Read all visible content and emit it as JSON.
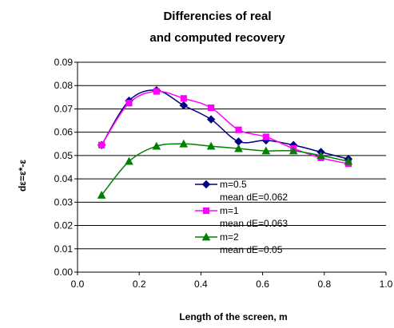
{
  "chart_data": {
    "type": "line",
    "title_lines": [
      "Differencies of real",
      "and computed recovery"
    ],
    "xlabel": "Length of the screen, m",
    "ylabel": "dε=ε*-ε",
    "xlim": [
      0,
      1.0
    ],
    "ylim": [
      0,
      0.09
    ],
    "x_ticks": [
      "0.0",
      "0.2",
      "0.4",
      "0.6",
      "0.8",
      "1.0"
    ],
    "y_ticks": [
      "0.00",
      "0.01",
      "0.02",
      "0.03",
      "0.04",
      "0.05",
      "0.06",
      "0.07",
      "0.08",
      "0.09"
    ],
    "grid": "horizontal",
    "legend_position": "center",
    "series": [
      {
        "name": "m=0.5",
        "stat": "mean dE=0.062",
        "color": "#000080",
        "marker": "diamond",
        "x": [
          0.078,
          0.167,
          0.256,
          0.344,
          0.433,
          0.522,
          0.611,
          0.7,
          0.789,
          0.878
        ],
        "values": [
          0.0545,
          0.0735,
          0.078,
          0.0715,
          0.0655,
          0.056,
          0.0565,
          0.0545,
          0.0515,
          0.0485
        ]
      },
      {
        "name": "m=1",
        "stat": "mean dE=0.063",
        "color": "#ff00ff",
        "marker": "square",
        "x": [
          0.078,
          0.167,
          0.256,
          0.344,
          0.433,
          0.522,
          0.611,
          0.7,
          0.789,
          0.878
        ],
        "values": [
          0.0545,
          0.0725,
          0.0775,
          0.0745,
          0.0705,
          0.061,
          0.058,
          0.053,
          0.049,
          0.0465
        ]
      },
      {
        "name": "m=2",
        "stat": "mean dE=0.05",
        "color": "#008000",
        "marker": "triangle",
        "x": [
          0.078,
          0.167,
          0.256,
          0.344,
          0.433,
          0.522,
          0.611,
          0.7,
          0.789,
          0.878
        ],
        "values": [
          0.033,
          0.0475,
          0.054,
          0.055,
          0.054,
          0.053,
          0.052,
          0.052,
          0.05,
          0.0475
        ]
      }
    ]
  }
}
